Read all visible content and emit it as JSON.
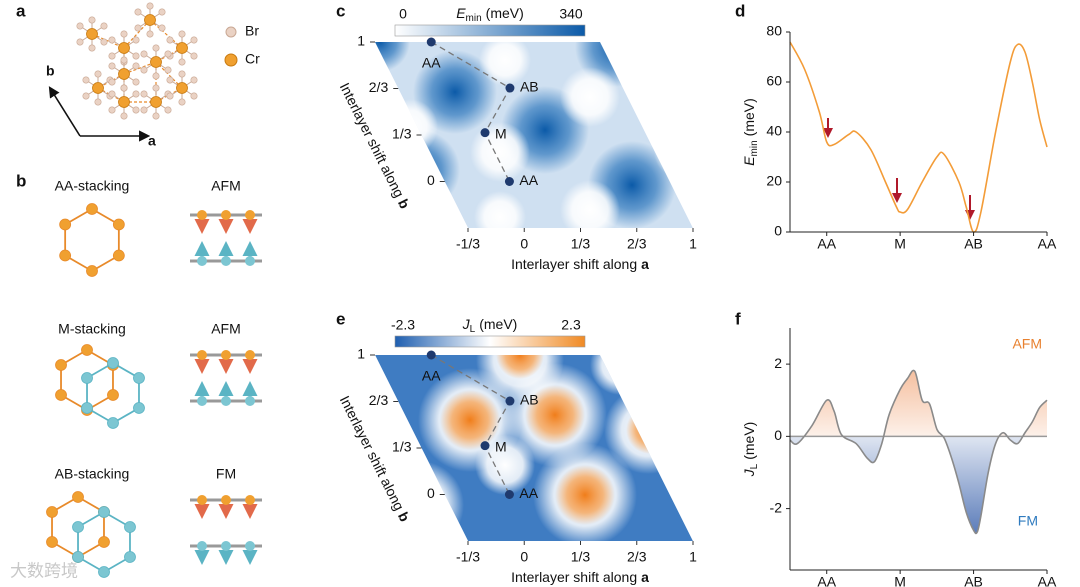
{
  "panels": {
    "a": "a",
    "b": "b",
    "c": "c",
    "d": "d",
    "e": "e",
    "f": "f"
  },
  "structure": {
    "legend": [
      "Br",
      "Cr"
    ],
    "axes": [
      "b",
      "a"
    ]
  },
  "stacking": [
    {
      "name": "AA-stacking",
      "order": "AFM"
    },
    {
      "name": "M-stacking",
      "order": "AFM"
    },
    {
      "name": "AB-stacking",
      "order": "FM"
    }
  ],
  "chart_data": [
    {
      "type": "map",
      "colorbar": {
        "ticks": [
          0,
          340
        ],
        "symbol": "E",
        "subscript": "min",
        "unit": "(meV)",
        "colors": [
          "#ffffff",
          "#0b5aa8"
        ]
      },
      "xlim": [
        -0.3333,
        1
      ],
      "ylim": [
        -0.3333,
        1
      ],
      "xticks": [
        {
          "value": -0.3333,
          "label": "-1/3"
        },
        0,
        {
          "value": 0.3333,
          "label": "1/3"
        },
        {
          "value": 0.6667,
          "label": "2/3"
        },
        1
      ],
      "yticks": [
        0,
        {
          "value": 0.3333,
          "label": "1/3"
        },
        {
          "value": 0.6667,
          "label": "2/3"
        },
        1
      ],
      "x_label": "Interlayer shift along",
      "x_label_vector": "a",
      "y_label": "Interlayer shift along",
      "y_label_vector": "b",
      "points": [
        {
          "name": "AA",
          "a": 0,
          "b": 1
        },
        {
          "name": "AB",
          "a": 0.33,
          "b": 0.67
        },
        {
          "name": "M",
          "a": 0.05,
          "b": 0.35
        },
        {
          "name": "AA",
          "a": 0.05,
          "b": 0
        }
      ]
    },
    {
      "type": "map",
      "colorbar": {
        "ticks": [
          -2.3,
          2.3
        ],
        "symbol": "J",
        "subscript": "L",
        "unit": "(meV)",
        "colors": [
          "#1f5fb0",
          "#ffffff",
          "#f08a24"
        ]
      },
      "xlim": [
        -0.3333,
        1
      ],
      "ylim": [
        -0.3333,
        1
      ],
      "xticks": [
        {
          "value": -0.3333,
          "label": "-1/3"
        },
        0,
        {
          "value": 0.3333,
          "label": "1/3"
        },
        {
          "value": 0.6667,
          "label": "2/3"
        },
        1
      ],
      "yticks": [
        0,
        {
          "value": 0.3333,
          "label": "1/3"
        },
        {
          "value": 0.6667,
          "label": "2/3"
        },
        1
      ],
      "x_label": "Interlayer shift along",
      "x_label_vector": "a",
      "y_label": "Interlayer shift along",
      "y_label_vector": "b",
      "points": [
        {
          "name": "AA",
          "a": 0,
          "b": 1
        },
        {
          "name": "AB",
          "a": 0.33,
          "b": 0.67
        },
        {
          "name": "M",
          "a": 0.05,
          "b": 0.35
        },
        {
          "name": "AA",
          "a": 0.05,
          "b": 0
        }
      ]
    },
    {
      "type": "line",
      "x": [
        -0.5,
        -0.3,
        -0.1,
        0,
        0.1,
        0.3,
        0.4,
        0.6,
        0.8,
        0.95,
        1,
        1.1,
        1.3,
        1.5,
        1.6,
        1.8,
        1.9,
        2,
        2.1,
        2.3,
        2.5,
        2.6,
        2.7,
        2.8,
        2.9,
        3
      ],
      "values": [
        76,
        65,
        48,
        36,
        35,
        39,
        40,
        33,
        20,
        10,
        8,
        9,
        20,
        30,
        31,
        20,
        10,
        0,
        8,
        40,
        68,
        75,
        72,
        60,
        45,
        34
      ],
      "color": "#f39c38",
      "xlim": [
        -0.5,
        3
      ],
      "ylim": [
        0,
        80
      ],
      "xticks": [
        {
          "value": 0,
          "label": "AA"
        },
        {
          "value": 1,
          "label": "M"
        },
        {
          "value": 2,
          "label": "AB"
        },
        {
          "value": 3,
          "label": "AA"
        }
      ],
      "yticks": [
        0,
        20,
        40,
        60,
        80
      ],
      "y_label": {
        "symbol": "E",
        "subscript": "min",
        "unit": "(meV)"
      }
    },
    {
      "type": "line",
      "x": [
        -0.5,
        -0.4,
        -0.2,
        0,
        0.1,
        0.2,
        0.4,
        0.55,
        0.65,
        0.75,
        0.85,
        1,
        1.1,
        1.2,
        1.3,
        1.4,
        1.5,
        1.6,
        1.7,
        1.8,
        1.9,
        2,
        2.05,
        2.1,
        2.2,
        2.3,
        2.4,
        2.5,
        2.6,
        2.7,
        2.8,
        2.9,
        3
      ],
      "values": [
        -0.1,
        -0.2,
        0.3,
        1.0,
        0.7,
        0.05,
        -0.2,
        -0.6,
        -0.7,
        -0.2,
        0.6,
        1.3,
        1.6,
        1.8,
        1.0,
        0.9,
        0.2,
        -0.05,
        -0.6,
        -1.3,
        -2.1,
        -2.6,
        -2.65,
        -2.2,
        -1.0,
        -0.2,
        0.1,
        -0.1,
        -0.2,
        0.1,
        0.4,
        0.8,
        1.0
      ],
      "color": "#8a8a8a",
      "fill_colors": [
        "#f0a070",
        "#2a55a5"
      ],
      "xlim": [
        -0.5,
        3
      ],
      "ylim": [
        -3.7,
        3
      ],
      "xticks": [
        {
          "value": 0,
          "label": "AA"
        },
        {
          "value": 1,
          "label": "M"
        },
        {
          "value": 2,
          "label": "AB"
        },
        {
          "value": 3,
          "label": "AA"
        }
      ],
      "yticks": [
        -2,
        0,
        2
      ],
      "y_label": {
        "symbol": "J",
        "subscript": "L",
        "unit": "(meV)"
      },
      "annotations": [
        {
          "text": "AFM",
          "color": "#e8812f"
        },
        {
          "text": "FM",
          "color": "#2f7bbf"
        }
      ]
    }
  ],
  "watermark": "大数跨境"
}
